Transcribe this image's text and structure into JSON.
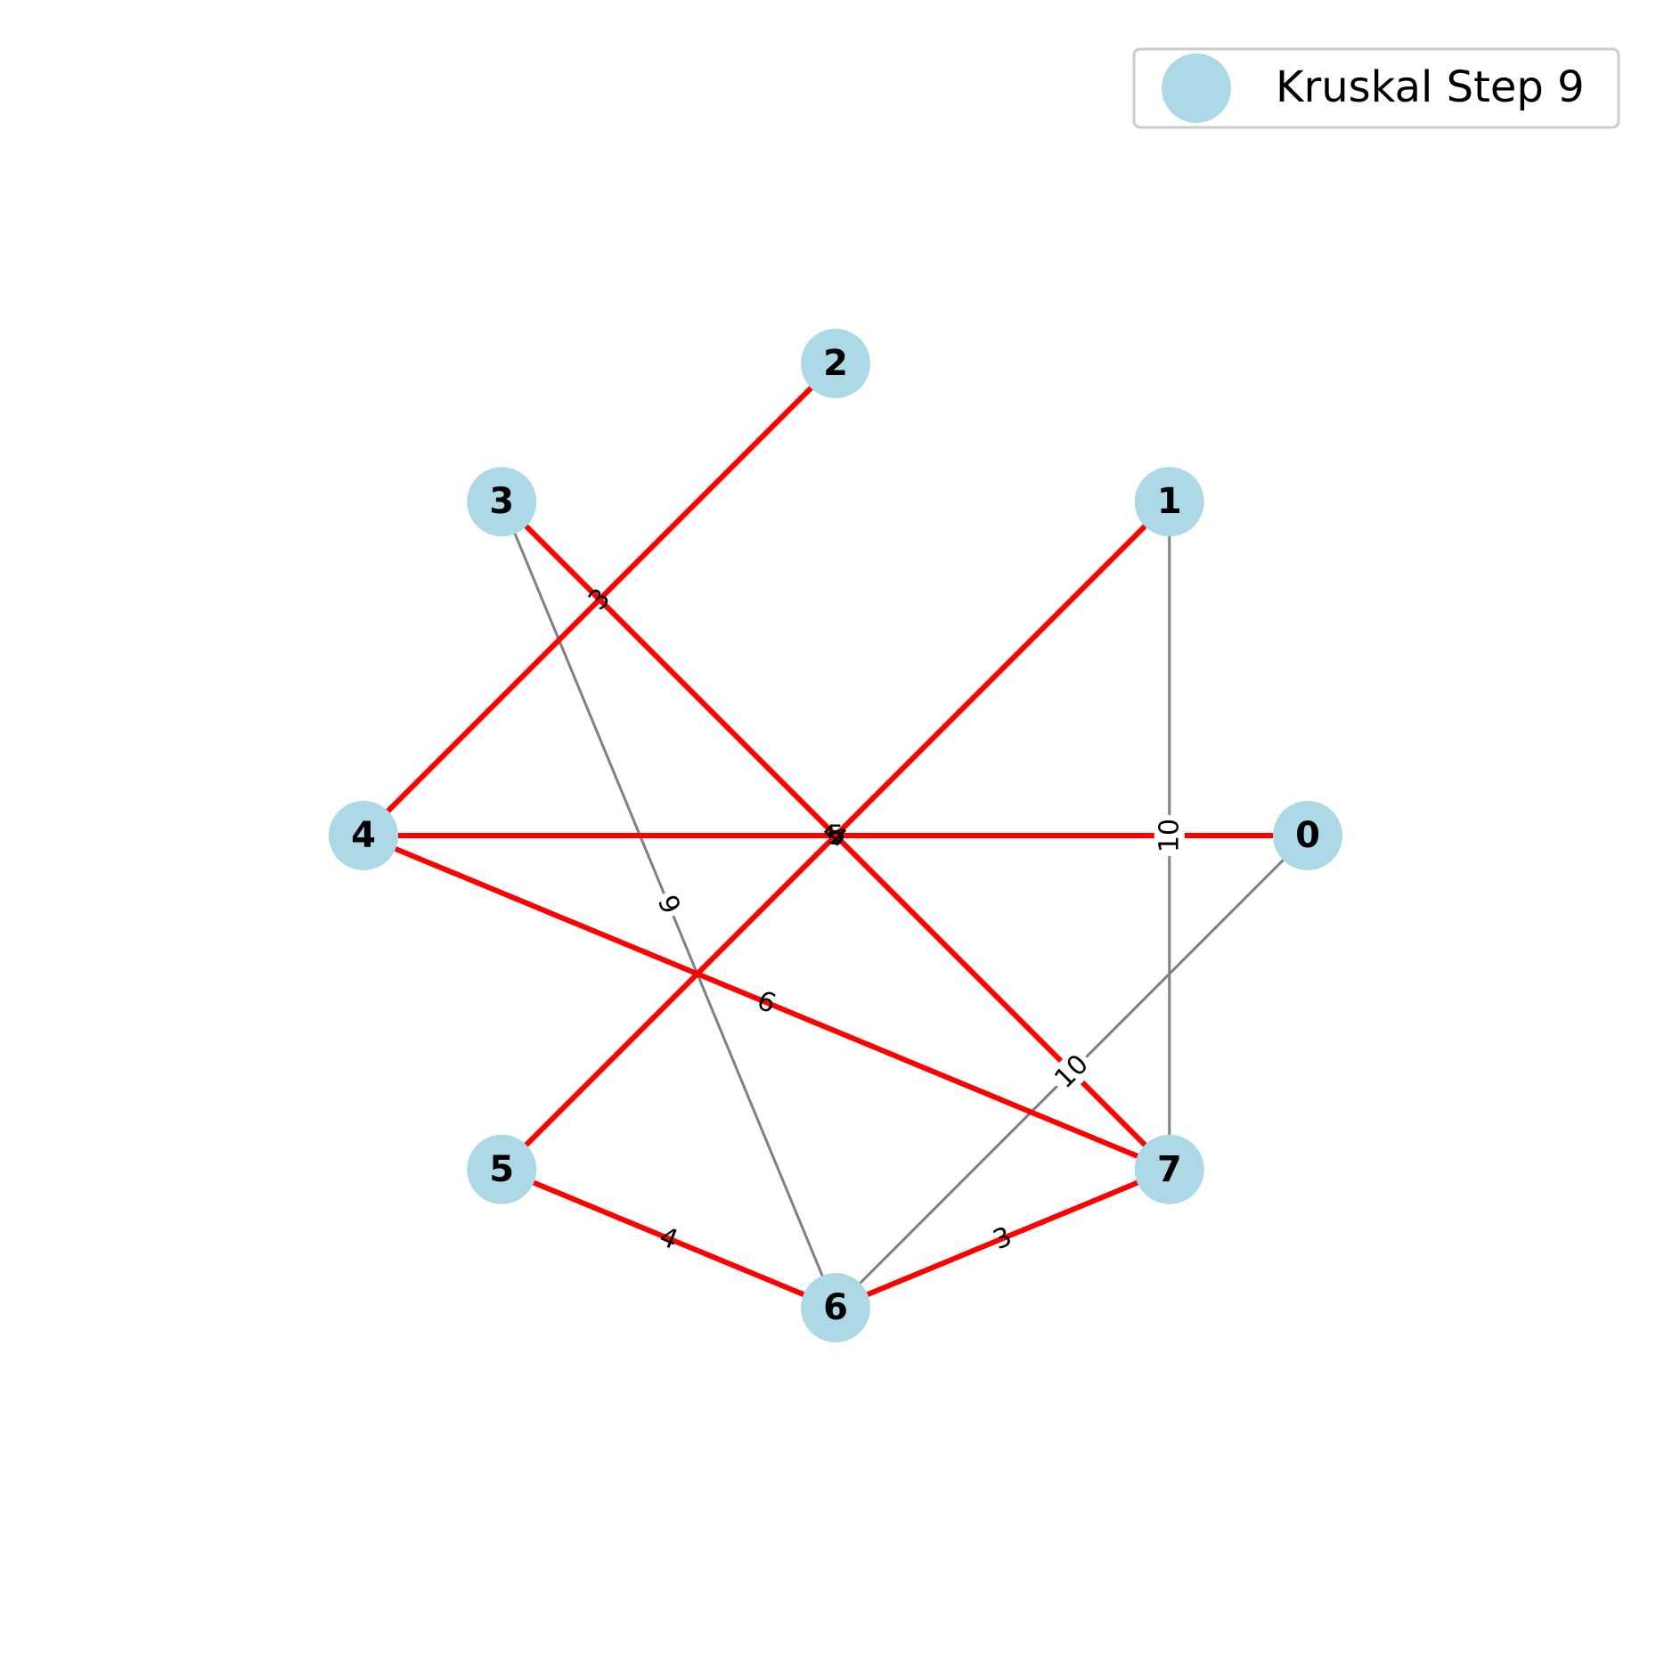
{
  "legend": {
    "label": "Kruskal Step 9"
  },
  "colors": {
    "node_fill": "#add8e6",
    "mst_edge": "#ff0000",
    "other_edge": "#808080"
  },
  "graph": {
    "nodes": [
      {
        "id": "0",
        "label": "0"
      },
      {
        "id": "1",
        "label": "1"
      },
      {
        "id": "2",
        "label": "2"
      },
      {
        "id": "3",
        "label": "3"
      },
      {
        "id": "4",
        "label": "4"
      },
      {
        "id": "5",
        "label": "5"
      },
      {
        "id": "6",
        "label": "6"
      },
      {
        "id": "7",
        "label": "7"
      }
    ],
    "edges": [
      {
        "source": "4",
        "target": "2",
        "weight": "3",
        "in_mst": true
      },
      {
        "source": "3",
        "target": "7",
        "weight": "4",
        "in_mst": true
      },
      {
        "source": "1",
        "target": "5",
        "weight": "5",
        "in_mst": true
      },
      {
        "source": "4",
        "target": "0",
        "weight": "5",
        "in_mst": true
      },
      {
        "source": "4",
        "target": "7",
        "weight": "6",
        "in_mst": true
      },
      {
        "source": "5",
        "target": "6",
        "weight": "4",
        "in_mst": true
      },
      {
        "source": "6",
        "target": "7",
        "weight": "3",
        "in_mst": true
      },
      {
        "source": "3",
        "target": "6",
        "weight": "9",
        "in_mst": false
      },
      {
        "source": "1",
        "target": "7",
        "weight": "10",
        "in_mst": false
      },
      {
        "source": "0",
        "target": "6",
        "weight": "10",
        "in_mst": false
      }
    ]
  }
}
